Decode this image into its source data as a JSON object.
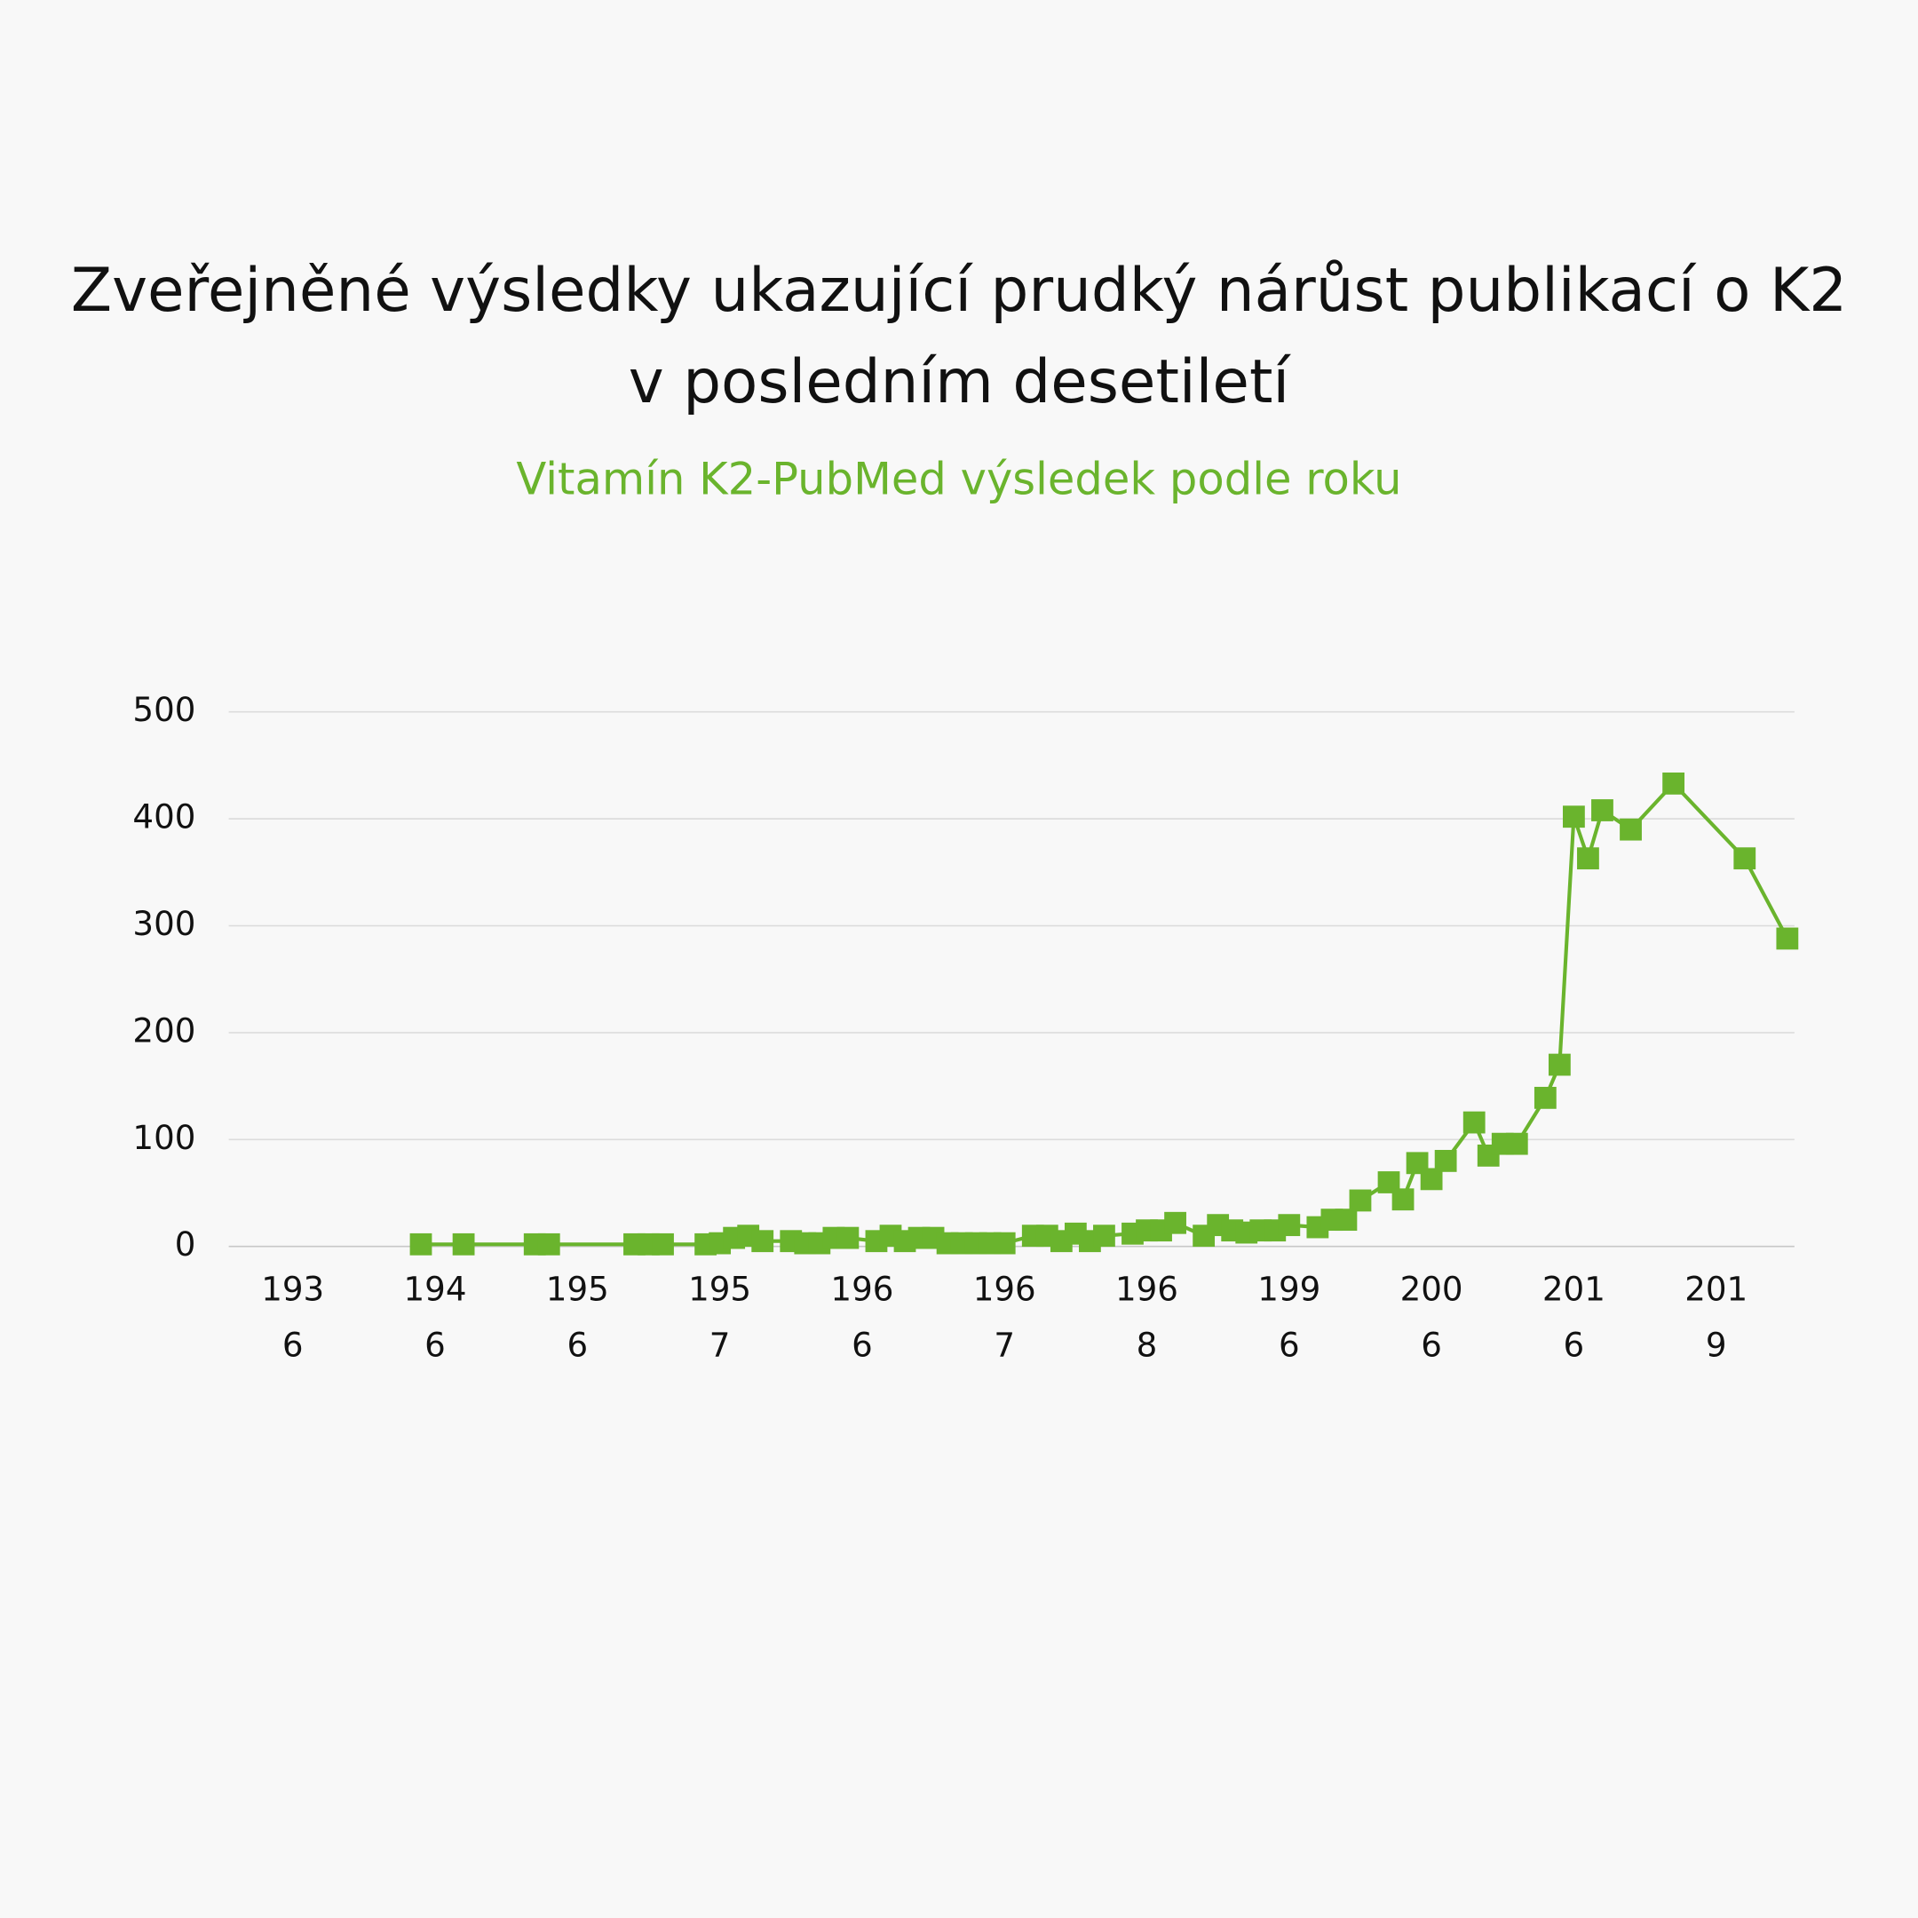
{
  "chart_data": {
    "type": "line",
    "title": "Zveřejněné výsledky ukazující prudký nárůst publikací o K2 v posledním desetiletí",
    "subtitle": "Vitamín K2-PubMed výsledek podle roku",
    "x": [
      13,
      16,
      21,
      22,
      28,
      29,
      30,
      33,
      34,
      35,
      36,
      37,
      39,
      40,
      41,
      42,
      43,
      45,
      46,
      47,
      48,
      49,
      50,
      51,
      52,
      53,
      54,
      56,
      57,
      58,
      59,
      60,
      61,
      63,
      64,
      65,
      66,
      68,
      69,
      70,
      71,
      72,
      73,
      74,
      76,
      77,
      78,
      79,
      81,
      82,
      83,
      84,
      85,
      87,
      88,
      89,
      90,
      92,
      93,
      94,
      95,
      96,
      98,
      101,
      106,
      109
    ],
    "series": [
      {
        "name": "Vitamín K2",
        "color": "#6ab42d",
        "values": [
          2,
          2,
          2,
          2,
          2,
          2,
          2,
          2,
          3,
          8,
          10,
          5,
          5,
          3,
          3,
          8,
          8,
          5,
          10,
          5,
          8,
          8,
          3,
          3,
          3,
          3,
          3,
          10,
          10,
          5,
          12,
          5,
          10,
          12,
          15,
          15,
          22,
          10,
          20,
          15,
          13,
          15,
          15,
          20,
          18,
          25,
          25,
          43,
          60,
          44,
          78,
          63,
          80,
          116,
          85,
          96,
          96,
          139,
          170,
          402,
          363,
          408,
          390,
          433,
          363,
          288
        ]
      }
    ],
    "xlim": [
      -0.5,
      109.5
    ],
    "xticks": [
      {
        "value": 4,
        "label": "1936"
      },
      {
        "value": 14,
        "label": "1946"
      },
      {
        "value": 24,
        "label": "1956"
      },
      {
        "value": 34,
        "label": "1957"
      },
      {
        "value": 44,
        "label": "1966"
      },
      {
        "value": 54,
        "label": "1967"
      },
      {
        "value": 64,
        "label": "1968"
      },
      {
        "value": 74,
        "label": "1996"
      },
      {
        "value": 84,
        "label": "2006"
      },
      {
        "value": 94,
        "label": "2016"
      },
      {
        "value": 104,
        "label": "2019"
      }
    ],
    "ylim": [
      0,
      500
    ],
    "yticks": [
      0,
      100,
      200,
      300,
      400,
      500
    ],
    "grid": true
  }
}
